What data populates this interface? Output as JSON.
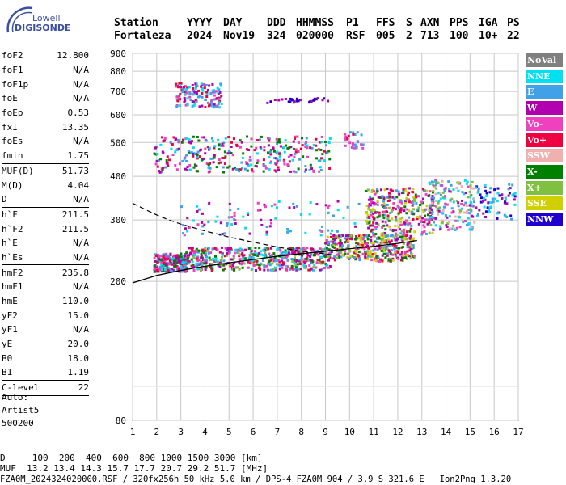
{
  "logo": {
    "line1": "Lowell",
    "line2": "DIGISONDE"
  },
  "header": {
    "station_label": "Station",
    "yyyy_label": "YYYY",
    "day_label": "DAY",
    "ddd_label": "DDD",
    "hhmmss_label": "HHMMSS",
    "p1_label": "P1",
    "ffs_label": "FFS",
    "s_label": "S",
    "axn_label": "AXN",
    "pps_label": "PPS",
    "iga_label": "IGA",
    "ps_label": "PS",
    "station": "Fortaleza",
    "yyyy": "2024",
    "day": "Nov19",
    "ddd": "324",
    "hhmmss": "020000",
    "p1": "RSF",
    "ffs": "005",
    "s": "2",
    "axn": "713",
    "pps": "100",
    "iga": "10+",
    "ps": "22"
  },
  "params": [
    {
      "k": "foF2",
      "v": "12.800",
      "sep": false
    },
    {
      "k": "foF1",
      "v": "N/A",
      "sep": false
    },
    {
      "k": "foF1p",
      "v": "N/A",
      "sep": false
    },
    {
      "k": "foE",
      "v": "N/A",
      "sep": false
    },
    {
      "k": "foEp",
      "v": "0.53",
      "sep": false
    },
    {
      "k": "fxI",
      "v": "13.35",
      "sep": false
    },
    {
      "k": "foEs",
      "v": "N/A",
      "sep": false
    },
    {
      "k": "fmin",
      "v": "1.75",
      "sep": true
    },
    {
      "k": "MUF(D)",
      "v": "51.73",
      "sep": false
    },
    {
      "k": "M(D)",
      "v": "4.04",
      "sep": false
    },
    {
      "k": "D",
      "v": "N/A",
      "sep": true
    },
    {
      "k": "h`F",
      "v": "211.5",
      "sep": false
    },
    {
      "k": "h`F2",
      "v": "211.5",
      "sep": false
    },
    {
      "k": "h`E",
      "v": "N/A",
      "sep": false
    },
    {
      "k": "h`Es",
      "v": "N/A",
      "sep": true
    },
    {
      "k": "hmF2",
      "v": "235.8",
      "sep": false
    },
    {
      "k": "hmF1",
      "v": "N/A",
      "sep": false
    },
    {
      "k": "hmE",
      "v": "110.0",
      "sep": false
    },
    {
      "k": "yF2",
      "v": "15.0",
      "sep": false
    },
    {
      "k": "yF1",
      "v": "N/A",
      "sep": false
    },
    {
      "k": "yE",
      "v": "20.0",
      "sep": false
    },
    {
      "k": "B0",
      "v": "18.0",
      "sep": false
    },
    {
      "k": "B1",
      "v": "1.19",
      "sep": true
    },
    {
      "k": "C-level",
      "v": "22",
      "sep": true
    }
  ],
  "autoscale": {
    "l1": "Auto:",
    "l2": "Artist5",
    "l3": "500200"
  },
  "legend": [
    {
      "label": "NoVal",
      "color": "#808080"
    },
    {
      "label": "NNE",
      "color": "#00e0f0"
    },
    {
      "label": "E",
      "color": "#40a0e8"
    },
    {
      "label": "W",
      "color": "#b000b0"
    },
    {
      "label": "Vo-",
      "color": "#f040c0"
    },
    {
      "label": "Vo+",
      "color": "#f00040"
    },
    {
      "label": "SSW",
      "color": "#f0b0b0"
    },
    {
      "label": "X-",
      "color": "#008000"
    },
    {
      "label": "X+",
      "color": "#80c040"
    },
    {
      "label": "SSE",
      "color": "#d0d000"
    },
    {
      "label": "NNW",
      "color": "#2000d0"
    }
  ],
  "footer": {
    "d_row": "D     100  200  400  600  800 1000 1500 3000 [km]",
    "muf_row": "MUF  13.2 13.4 14.3 15.7 17.7 20.7 29.2 51.7 [MHz]",
    "file_row": "FZA0M_2024324020000.RSF / 320fx256h 50 kHz 5.0 km / DPS-4 FZA0M 904 / 3.9 S 321.6 E   Ion2Png 1.3.20"
  },
  "chart_data": {
    "type": "scatter",
    "x_ticks": [
      "1",
      "2",
      "3",
      "4",
      "5",
      "6",
      "7",
      "8",
      "9",
      "10",
      "11",
      "12",
      "13",
      "14",
      "15",
      "16",
      "17"
    ],
    "y_ticks": [
      "80",
      "200",
      "300",
      "400",
      "500",
      "600",
      "700",
      "800",
      "900"
    ],
    "xlim": [
      1,
      17
    ],
    "ylim": [
      80,
      900
    ],
    "y_scale": "log",
    "grid": true,
    "legend_position": "right",
    "trace_curve": [
      [
        1,
        198
      ],
      [
        2,
        208
      ],
      [
        3,
        215
      ],
      [
        4,
        221
      ],
      [
        5,
        226
      ],
      [
        6,
        231
      ],
      [
        7,
        236
      ],
      [
        8,
        240
      ],
      [
        9,
        244
      ],
      [
        10,
        248
      ],
      [
        11,
        252
      ],
      [
        12,
        257
      ],
      [
        12.8,
        262
      ]
    ],
    "profile_dashed": [
      [
        1,
        335
      ],
      [
        1.5,
        322
      ],
      [
        2,
        310
      ],
      [
        2.5,
        300
      ],
      [
        3,
        292
      ],
      [
        4,
        279
      ],
      [
        5,
        268
      ],
      [
        6,
        259
      ],
      [
        7,
        251
      ],
      [
        8,
        244
      ],
      [
        9,
        240
      ],
      [
        9.3,
        238
      ]
    ],
    "clusters": [
      {
        "x": [
          1.9,
          3.3
        ],
        "y": [
          213,
          240
        ],
        "n": 260,
        "colors": [
          "#f00040",
          "#f040c0",
          "#008000",
          "#40a0e8",
          "#00e0f0",
          "#b000b0"
        ]
      },
      {
        "x": [
          3.2,
          9.2
        ],
        "y": [
          215,
          250
        ],
        "n": 520,
        "colors": [
          "#f00040",
          "#f040c0",
          "#008000",
          "#40a0e8",
          "#00e0f0",
          "#b000b0",
          "#80c040"
        ]
      },
      {
        "x": [
          9.0,
          12.7
        ],
        "y": [
          228,
          272
        ],
        "n": 380,
        "colors": [
          "#f00040",
          "#f040c0",
          "#008000",
          "#80c040",
          "#b000b0",
          "#d0d000",
          "#40a0e8"
        ]
      },
      {
        "x": [
          1.9,
          9.2
        ],
        "y": [
          410,
          520
        ],
        "n": 330,
        "colors": [
          "#f00040",
          "#f040c0",
          "#b000b0",
          "#40a0e8",
          "#00e0f0",
          "#008000"
        ]
      },
      {
        "x": [
          2.8,
          4.7
        ],
        "y": [
          630,
          740
        ],
        "n": 140,
        "colors": [
          "#f040c0",
          "#b000b0",
          "#f00040",
          "#40a0e8",
          "#00e0f0"
        ]
      },
      {
        "x": [
          10.7,
          13.5
        ],
        "y": [
          270,
          370
        ],
        "n": 300,
        "colors": [
          "#b000b0",
          "#f040c0",
          "#d0d000",
          "#80c040",
          "#008000",
          "#f00040",
          "#40a0e8"
        ]
      },
      {
        "x": [
          13.3,
          15.2
        ],
        "y": [
          280,
          390
        ],
        "n": 180,
        "colors": [
          "#00e0f0",
          "#40a0e8",
          "#b000b0",
          "#f040c0",
          "#80c040",
          "#f0b0b0"
        ]
      },
      {
        "x": [
          15.2,
          16.9
        ],
        "y": [
          300,
          380
        ],
        "n": 70,
        "colors": [
          "#2000d0",
          "#b000b0",
          "#40a0e8",
          "#00e0f0"
        ]
      },
      {
        "x": [
          3.0,
          12.5
        ],
        "y": [
          270,
          340
        ],
        "n": 110,
        "colors": [
          "#00e0f0",
          "#40a0e8",
          "#b000b0",
          "#f040c0"
        ]
      },
      {
        "x": [
          6.5,
          9.2
        ],
        "y": [
          648,
          670
        ],
        "n": 30,
        "colors": [
          "#2000d0",
          "#b000b0"
        ]
      },
      {
        "x": [
          9.8,
          10.6
        ],
        "y": [
          480,
          540
        ],
        "n": 30,
        "colors": [
          "#f00040",
          "#f040c0",
          "#40a0e8"
        ]
      }
    ]
  }
}
